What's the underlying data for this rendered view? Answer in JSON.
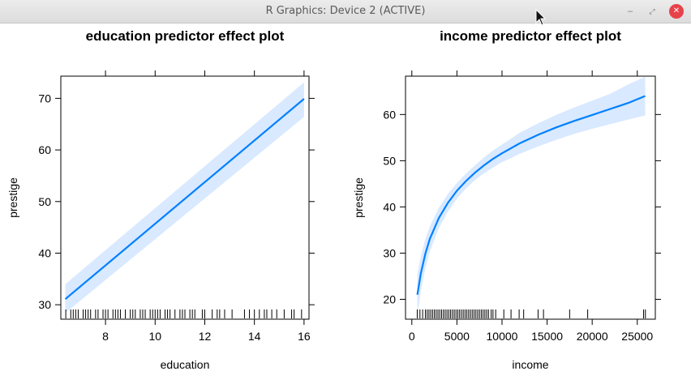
{
  "window": {
    "title": "R Graphics: Device 2 (ACTIVE)",
    "buttons": {
      "minimize": "–",
      "maximize": "⤢",
      "close": "✕"
    }
  },
  "chart_data": [
    {
      "type": "line",
      "title": "education predictor effect plot",
      "xlabel": "education",
      "ylabel": "prestige",
      "xlim": [
        6.2,
        16.2
      ],
      "ylim": [
        27.2,
        74.3
      ],
      "xticks": [
        8,
        10,
        12,
        14,
        16
      ],
      "yticks": [
        30,
        40,
        50,
        60,
        70
      ],
      "series": [
        {
          "x": [
            6.38,
            16.0
          ],
          "y": [
            31.1,
            69.9
          ],
          "lower": [
            28.4,
            66.4
          ],
          "upper": [
            34.0,
            73.1
          ]
        }
      ],
      "rug": [
        6.4,
        6.6,
        6.7,
        6.8,
        6.9,
        7.1,
        7.2,
        7.3,
        7.4,
        7.6,
        7.7,
        7.9,
        8.0,
        8.1,
        8.3,
        8.4,
        8.5,
        8.6,
        8.8,
        9.0,
        9.1,
        9.2,
        9.4,
        9.5,
        9.6,
        9.8,
        9.9,
        10.0,
        10.1,
        10.2,
        10.4,
        10.5,
        10.6,
        10.8,
        11.0,
        11.1,
        11.2,
        11.4,
        11.5,
        11.6,
        11.9,
        12.0,
        12.3,
        12.5,
        12.6,
        12.8,
        13.1,
        13.6,
        13.8,
        14.0,
        14.2,
        14.4,
        14.5,
        14.7,
        14.9,
        15.2,
        15.5,
        15.6,
        15.9
      ],
      "colors": {
        "line": "#0080ff",
        "band": "#d9e9ff"
      }
    },
    {
      "type": "line",
      "title": "income predictor effect plot",
      "xlabel": "income",
      "ylabel": "prestige",
      "xlim": [
        -700,
        27000
      ],
      "ylim": [
        15.7,
        68.3
      ],
      "xticks": [
        0,
        5000,
        10000,
        15000,
        20000,
        25000
      ],
      "yticks": [
        20,
        30,
        40,
        50,
        60
      ],
      "series": [
        {
          "x": [
            611,
            1000,
            1500,
            2000,
            3000,
            4000,
            5000,
            6000,
            7000,
            8000,
            9000,
            10000,
            12000,
            14000,
            16000,
            18000,
            20000,
            22000,
            24000,
            25879
          ],
          "y": [
            21.0,
            25.6,
            29.9,
            33.1,
            37.6,
            40.9,
            43.5,
            45.6,
            47.4,
            49.0,
            50.4,
            51.6,
            53.8,
            55.6,
            57.2,
            58.6,
            59.9,
            61.2,
            62.5,
            64.0
          ],
          "lower": [
            16.2,
            21.9,
            26.7,
            30.4,
            35.4,
            39.0,
            41.8,
            44.0,
            45.8,
            47.3,
            48.5,
            49.7,
            51.5,
            53.1,
            54.5,
            55.8,
            56.9,
            57.9,
            58.9,
            59.8
          ],
          "upper": [
            25.4,
            29.3,
            33.1,
            35.8,
            39.8,
            42.8,
            45.2,
            47.2,
            49.0,
            50.7,
            52.2,
            53.5,
            56.1,
            58.1,
            59.9,
            61.5,
            63.0,
            64.5,
            66.5,
            68.2
          ]
        }
      ],
      "rug": [
        600,
        900,
        1200,
        1500,
        1700,
        1900,
        2100,
        2300,
        2500,
        2700,
        2900,
        3100,
        3300,
        3500,
        3700,
        3900,
        4100,
        4300,
        4500,
        4700,
        4900,
        5100,
        5300,
        5500,
        5700,
        5900,
        6100,
        6300,
        6500,
        6700,
        6900,
        7100,
        7300,
        7500,
        7700,
        7900,
        8100,
        8300,
        8500,
        8800,
        9000,
        9300,
        10200,
        11000,
        11900,
        12400,
        14000,
        14600,
        17500,
        19500,
        25700,
        25900
      ],
      "colors": {
        "line": "#0080ff",
        "band": "#d9e9ff"
      }
    }
  ]
}
